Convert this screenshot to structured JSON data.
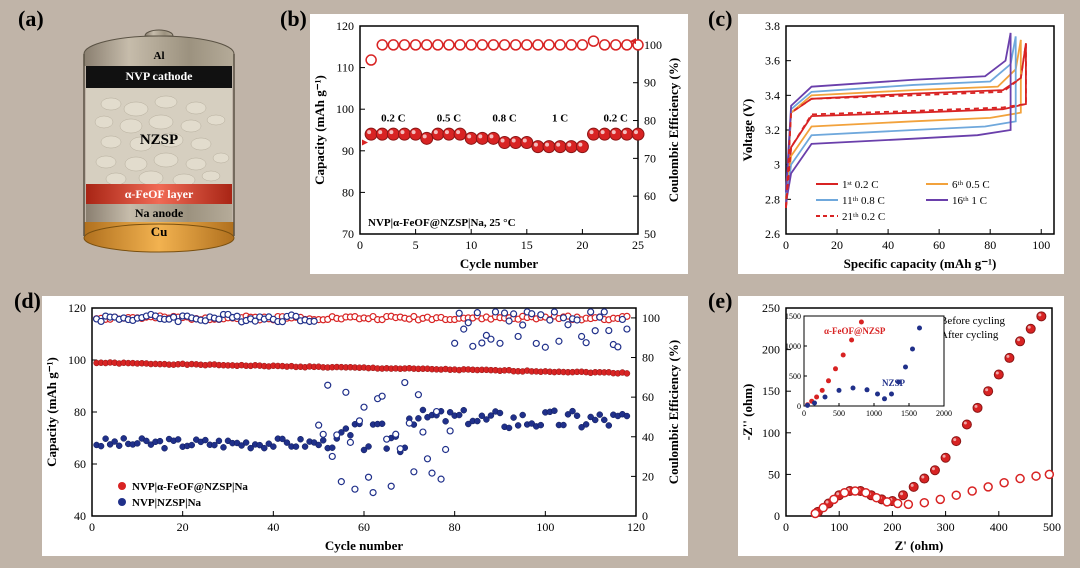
{
  "figure": {
    "background_color": "#c0b4a8",
    "panel_bg": "#ffffff"
  },
  "labels": {
    "a": "(a)",
    "b": "(b)",
    "c": "(c)",
    "d": "(d)",
    "e": "(e)"
  },
  "panel_a": {
    "labels": {
      "al": "Al",
      "cathode": "NVP cathode",
      "nzsp": "NZSP",
      "layer": "α-FeOF layer",
      "anode": "Na  anode",
      "cu": "Cu"
    },
    "colors": {
      "al": "#a79d8e",
      "cathode": "#1b1b1b",
      "nzsp": "#d9d2c6",
      "layer": "#d63c2a",
      "anode": "#b0a89a",
      "cu": "#d99a2e"
    }
  },
  "panel_b": {
    "type": "scatter-dual-axis",
    "title": "NVP|α-FeOF@NZSP|Na, 25 °C",
    "xlabel": "Cycle number",
    "ylabel_left": "Capacity (mAh g⁻¹)",
    "ylabel_right": "Coulombic Efficiency (%)",
    "xlim": [
      0,
      25
    ],
    "ylim_left": [
      70,
      120
    ],
    "ylim_right": [
      50,
      105
    ],
    "xticks": [
      0,
      5,
      10,
      15,
      20,
      25
    ],
    "yticks_left": [
      70,
      80,
      90,
      100,
      110,
      120
    ],
    "yticks_right": [
      50,
      60,
      70,
      80,
      90,
      100
    ],
    "rate_labels": [
      {
        "text": "0.2 C",
        "x": 3
      },
      {
        "text": "0.5 C",
        "x": 8
      },
      {
        "text": "0.8 C",
        "x": 13
      },
      {
        "text": "1 C",
        "x": 18
      },
      {
        "text": "0.2 C",
        "x": 23
      }
    ],
    "capacity": {
      "x": [
        1,
        2,
        3,
        4,
        5,
        6,
        7,
        8,
        9,
        10,
        11,
        12,
        13,
        14,
        15,
        16,
        17,
        18,
        19,
        20,
        21,
        22,
        23,
        24,
        25
      ],
      "y": [
        94,
        94,
        94,
        94,
        94,
        93,
        94,
        94,
        94,
        93,
        93,
        93,
        92,
        92,
        92,
        91,
        91,
        91,
        91,
        91,
        94,
        94,
        94,
        94,
        94
      ],
      "color": "#d82323",
      "marker": "filled-circle",
      "marker_size": 6
    },
    "coulombic": {
      "x": [
        1,
        2,
        3,
        4,
        5,
        6,
        7,
        8,
        9,
        10,
        11,
        12,
        13,
        14,
        15,
        16,
        17,
        18,
        19,
        20,
        21,
        22,
        23,
        24,
        25
      ],
      "y": [
        96,
        100,
        100,
        100,
        100,
        100,
        100,
        100,
        100,
        100,
        100,
        100,
        100,
        100,
        100,
        100,
        100,
        100,
        100,
        100,
        101,
        100,
        100,
        100,
        100
      ],
      "color": "#d82323",
      "marker": "open-circle",
      "marker_size": 5
    },
    "axis_color": "#000000"
  },
  "panel_c": {
    "type": "line",
    "xlabel": "Specific capacity (mAh g⁻¹)",
    "ylabel": "Voltage (V)",
    "xlim": [
      0,
      105
    ],
    "ylim": [
      2.6,
      3.8
    ],
    "xticks": [
      0,
      20,
      40,
      60,
      80,
      100
    ],
    "yticks": [
      2.6,
      2.8,
      3.0,
      3.2,
      3.4,
      3.6,
      3.8
    ],
    "legend": [
      {
        "label": "1ˢᵗ  0.2 C",
        "color": "#d82323",
        "dash": "solid"
      },
      {
        "label": "6ᵗʰ  0.5 C",
        "color": "#f2a23c",
        "dash": "solid"
      },
      {
        "label": "11ᵗʰ 0.8 C",
        "color": "#6fa8dc",
        "dash": "solid"
      },
      {
        "label": "16ᵗʰ 1 C",
        "color": "#6a3fab",
        "dash": "solid"
      },
      {
        "label": "21ᵗʰ 0.2 C",
        "color": "#d82323",
        "dash": "dashed"
      }
    ],
    "curves": {
      "c02_charge": {
        "color": "#d82323",
        "dash": "solid",
        "pts": [
          [
            0,
            2.75
          ],
          [
            2,
            3.3
          ],
          [
            10,
            3.38
          ],
          [
            50,
            3.41
          ],
          [
            85,
            3.43
          ],
          [
            92,
            3.5
          ],
          [
            94,
            3.7
          ]
        ]
      },
      "c02_discharge": {
        "color": "#d82323",
        "dash": "solid",
        "pts": [
          [
            94,
            3.7
          ],
          [
            94,
            3.35
          ],
          [
            85,
            3.32
          ],
          [
            50,
            3.3
          ],
          [
            10,
            3.28
          ],
          [
            2,
            3.1
          ],
          [
            0,
            2.75
          ]
        ]
      },
      "c05_charge": {
        "color": "#f2a23c",
        "dash": "solid",
        "pts": [
          [
            0,
            2.8
          ],
          [
            2,
            3.3
          ],
          [
            10,
            3.4
          ],
          [
            50,
            3.43
          ],
          [
            83,
            3.45
          ],
          [
            90,
            3.55
          ],
          [
            92,
            3.72
          ]
        ]
      },
      "c05_discharge": {
        "color": "#f2a23c",
        "dash": "solid",
        "pts": [
          [
            92,
            3.72
          ],
          [
            92,
            3.3
          ],
          [
            80,
            3.27
          ],
          [
            50,
            3.25
          ],
          [
            10,
            3.22
          ],
          [
            2,
            3.05
          ],
          [
            0,
            2.78
          ]
        ]
      },
      "c08_charge": {
        "color": "#6fa8dc",
        "dash": "solid",
        "pts": [
          [
            0,
            2.82
          ],
          [
            2,
            3.32
          ],
          [
            10,
            3.42
          ],
          [
            50,
            3.46
          ],
          [
            80,
            3.48
          ],
          [
            88,
            3.58
          ],
          [
            90,
            3.74
          ]
        ]
      },
      "c08_discharge": {
        "color": "#6fa8dc",
        "dash": "solid",
        "pts": [
          [
            90,
            3.74
          ],
          [
            90,
            3.25
          ],
          [
            78,
            3.22
          ],
          [
            50,
            3.2
          ],
          [
            10,
            3.17
          ],
          [
            2,
            3.0
          ],
          [
            0,
            2.78
          ]
        ]
      },
      "c1_charge": {
        "color": "#6a3fab",
        "dash": "solid",
        "pts": [
          [
            0,
            2.84
          ],
          [
            2,
            3.34
          ],
          [
            10,
            3.45
          ],
          [
            50,
            3.49
          ],
          [
            78,
            3.51
          ],
          [
            86,
            3.6
          ],
          [
            88,
            3.76
          ]
        ]
      },
      "c1_discharge": {
        "color": "#6a3fab",
        "dash": "solid",
        "pts": [
          [
            88,
            3.76
          ],
          [
            88,
            3.2
          ],
          [
            75,
            3.17
          ],
          [
            50,
            3.15
          ],
          [
            10,
            3.12
          ],
          [
            2,
            2.95
          ],
          [
            0,
            2.78
          ]
        ]
      },
      "c02b_charge": {
        "color": "#d82323",
        "dash": "dashed",
        "pts": [
          [
            0,
            2.75
          ],
          [
            2,
            3.3
          ],
          [
            10,
            3.38
          ],
          [
            50,
            3.4
          ],
          [
            85,
            3.42
          ],
          [
            92,
            3.5
          ],
          [
            94,
            3.7
          ]
        ]
      },
      "c02b_discharge": {
        "color": "#d82323",
        "dash": "dashed",
        "pts": [
          [
            94,
            3.7
          ],
          [
            94,
            3.35
          ],
          [
            85,
            3.33
          ],
          [
            50,
            3.31
          ],
          [
            10,
            3.29
          ],
          [
            2,
            3.1
          ],
          [
            0,
            2.76
          ]
        ]
      }
    }
  },
  "panel_d": {
    "type": "scatter-dual-axis",
    "xlabel": "Cycle number",
    "ylabel_left": "Capacity (mAh g⁻¹)",
    "ylabel_right": "Coulombic Efficiency (%)",
    "xlim": [
      0,
      120
    ],
    "ylim_left": [
      40,
      120
    ],
    "ylim_right": [
      0,
      105
    ],
    "xticks": [
      0,
      20,
      40,
      60,
      80,
      100,
      120
    ],
    "yticks_left": [
      40,
      60,
      80,
      100,
      120
    ],
    "yticks_right": [
      0,
      20,
      40,
      60,
      80,
      100
    ],
    "series": {
      "red_cap": {
        "color": "#d82323",
        "marker": "filled-circle",
        "label": "NVP|α-FeOF@NZSP|Na"
      },
      "red_ce": {
        "color": "#d82323",
        "marker": "open-circle"
      },
      "blue_cap": {
        "color": "#20308a",
        "marker": "filled-circle",
        "label": "NVP|NZSP|Na"
      },
      "blue_ce": {
        "color": "#20308a",
        "marker": "open-circle"
      }
    },
    "red_cap_y_min": 95,
    "red_cap_y_max": 99,
    "red_ce_y": 100,
    "blue_cap_ranges": [
      {
        "x0": 1,
        "x1": 55,
        "y": 68,
        "jitter": 2
      },
      {
        "x0": 55,
        "x1": 70,
        "y": 70,
        "jitter": 6
      },
      {
        "x0": 70,
        "x1": 85,
        "y": 78,
        "jitter": 3
      },
      {
        "x0": 85,
        "x1": 120,
        "y": 77,
        "jitter": 4
      }
    ],
    "blue_ce_ranges": [
      {
        "x0": 1,
        "x1": 50,
        "y": 100,
        "jitter": 2
      },
      {
        "x0": 50,
        "x1": 80,
        "y": 40,
        "jitter": 30
      },
      {
        "x0": 80,
        "x1": 120,
        "y": 95,
        "jitter": 10
      }
    ]
  },
  "panel_e": {
    "type": "nyquist",
    "xlabel": "Z' (ohm)",
    "ylabel": "-Z'' (ohm)",
    "xlim": [
      0,
      500
    ],
    "ylim": [
      0,
      250
    ],
    "xticks": [
      0,
      100,
      200,
      300,
      400,
      500
    ],
    "yticks": [
      0,
      50,
      100,
      150,
      200,
      250
    ],
    "series": {
      "before": {
        "color": "#d82323",
        "marker": "filled-circle",
        "label": "Before cycling",
        "pts": [
          [
            60,
            5
          ],
          [
            80,
            15
          ],
          [
            100,
            25
          ],
          [
            120,
            30
          ],
          [
            140,
            30
          ],
          [
            160,
            25
          ],
          [
            180,
            20
          ],
          [
            200,
            18
          ],
          [
            220,
            25
          ],
          [
            240,
            35
          ],
          [
            260,
            45
          ],
          [
            280,
            55
          ],
          [
            300,
            70
          ],
          [
            320,
            90
          ],
          [
            340,
            110
          ],
          [
            360,
            130
          ],
          [
            380,
            150
          ],
          [
            400,
            170
          ],
          [
            420,
            190
          ],
          [
            440,
            210
          ],
          [
            460,
            225
          ],
          [
            480,
            240
          ]
        ]
      },
      "after": {
        "color": "#d82323",
        "marker": "open-circle",
        "label": "After cycling",
        "pts": [
          [
            55,
            3
          ],
          [
            70,
            10
          ],
          [
            90,
            20
          ],
          [
            110,
            28
          ],
          [
            130,
            30
          ],
          [
            150,
            28
          ],
          [
            170,
            22
          ],
          [
            190,
            17
          ],
          [
            210,
            15
          ],
          [
            230,
            14
          ],
          [
            260,
            16
          ],
          [
            290,
            20
          ],
          [
            320,
            25
          ],
          [
            350,
            30
          ],
          [
            380,
            35
          ],
          [
            410,
            40
          ],
          [
            440,
            45
          ],
          [
            470,
            48
          ],
          [
            495,
            50
          ]
        ]
      }
    },
    "inset": {
      "xlim": [
        0,
        2000
      ],
      "ylim": [
        0,
        1500
      ],
      "xticks": [
        0,
        500,
        1000,
        1500,
        2000
      ],
      "yticks": [
        0,
        500,
        1000,
        1500
      ],
      "red_label": "α-FeOF@NZSP",
      "blue_label": "NZSP",
      "red": {
        "color": "#d82323",
        "pts": [
          [
            50,
            20
          ],
          [
            110,
            80
          ],
          [
            180,
            150
          ],
          [
            260,
            260
          ],
          [
            350,
            420
          ],
          [
            450,
            620
          ],
          [
            560,
            850
          ],
          [
            680,
            1100
          ],
          [
            820,
            1400
          ]
        ]
      },
      "blue": {
        "color": "#20308a",
        "pts": [
          [
            50,
            10
          ],
          [
            150,
            50
          ],
          [
            300,
            150
          ],
          [
            500,
            260
          ],
          [
            700,
            300
          ],
          [
            900,
            270
          ],
          [
            1050,
            200
          ],
          [
            1150,
            120
          ],
          [
            1250,
            200
          ],
          [
            1350,
            400
          ],
          [
            1450,
            650
          ],
          [
            1550,
            950
          ],
          [
            1650,
            1300
          ]
        ]
      }
    }
  }
}
